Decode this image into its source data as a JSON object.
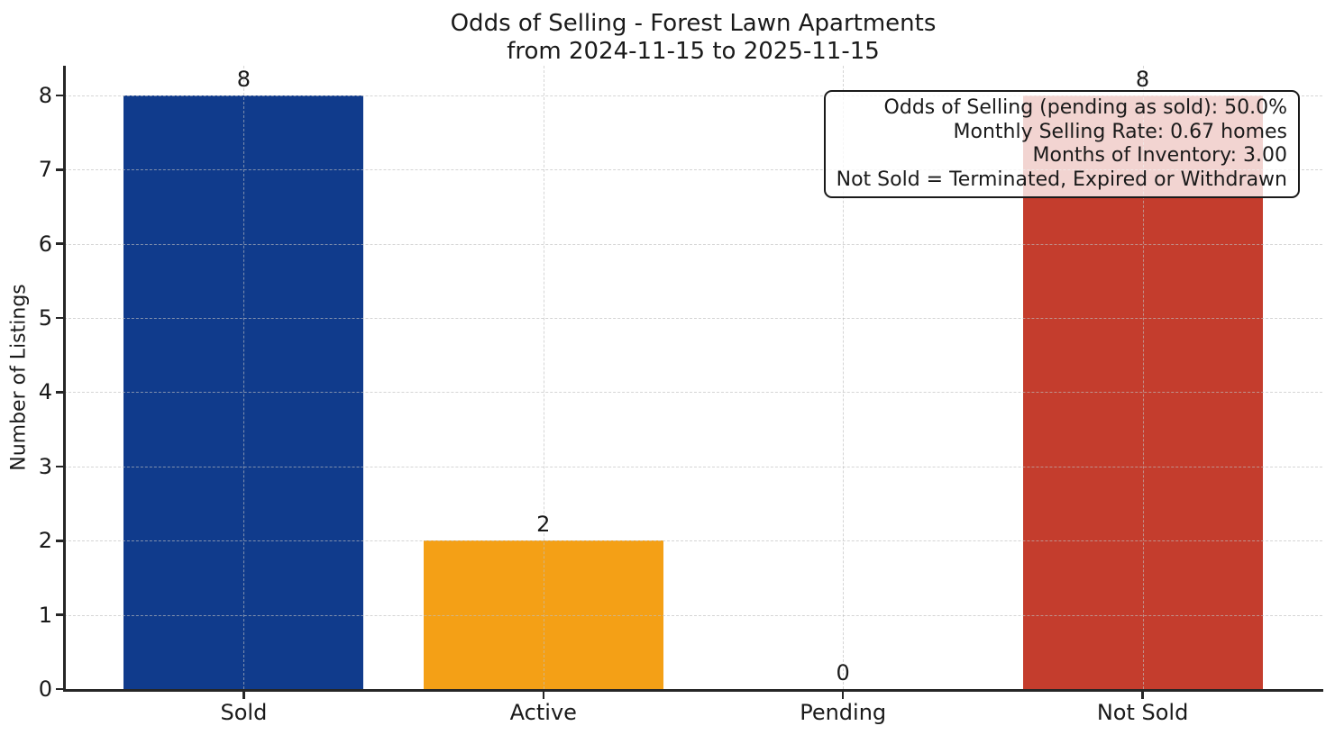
{
  "chart_data": {
    "type": "bar",
    "title": "Odds of Selling - Forest Lawn Apartments",
    "subtitle": "from 2024-11-15 to 2025-11-15",
    "xlabel": "",
    "ylabel": "Number of Listings",
    "categories": [
      "Sold",
      "Active",
      "Pending",
      "Not Sold"
    ],
    "values": [
      8,
      2,
      0,
      8
    ],
    "bar_colors": [
      "#103b8c",
      "#f4a016",
      null,
      "#c43d2d"
    ],
    "yticks": [
      0,
      1,
      2,
      3,
      4,
      5,
      6,
      7,
      8
    ],
    "ylim": [
      0,
      8.4
    ],
    "grid": "dashed-both-axes",
    "legend": "none",
    "annotation_box": {
      "position": "top-right",
      "lines": [
        "Odds of Selling (pending as sold): 50.0%",
        "Monthly Selling Rate: 0.67 homes",
        "Months of Inventory: 3.00",
        "Not Sold = Terminated, Expired or Withdrawn"
      ]
    }
  }
}
